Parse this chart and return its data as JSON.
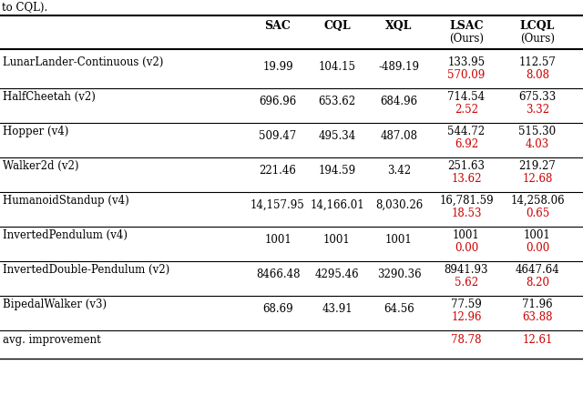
{
  "top_text": "to CQL).",
  "columns": [
    "SAC",
    "CQL",
    "XQL",
    "LSAC\n(Ours)",
    "LCQL\n(Ours)"
  ],
  "rows": [
    {
      "env": "LunarLander-Continuous (v2)",
      "vals": [
        "19.99",
        "104.15",
        "-489.19",
        "133.95",
        "112.57"
      ],
      "reds": [
        "",
        "",
        "",
        "570.09",
        "8.08"
      ]
    },
    {
      "env": "HalfCheetah (v2)",
      "vals": [
        "696.96",
        "653.62",
        "684.96",
        "714.54",
        "675.33"
      ],
      "reds": [
        "",
        "",
        "",
        "2.52",
        "3.32"
      ]
    },
    {
      "env": "Hopper (v4)",
      "vals": [
        "509.47",
        "495.34",
        "487.08",
        "544.72",
        "515.30"
      ],
      "reds": [
        "",
        "",
        "",
        "6.92",
        "4.03"
      ]
    },
    {
      "env": "Walker2d (v2)",
      "vals": [
        "221.46",
        "194.59",
        "3.42",
        "251.63",
        "219.27"
      ],
      "reds": [
        "",
        "",
        "",
        "13.62",
        "12.68"
      ]
    },
    {
      "env": "HumanoidStandup (v4)",
      "vals": [
        "14,157.95",
        "14,166.01",
        "8,030.26",
        "16,781.59",
        "14,258.06"
      ],
      "reds": [
        "",
        "",
        "",
        "18.53",
        "0.65"
      ]
    },
    {
      "env": "InvertedPendulum (v4)",
      "vals": [
        "1001",
        "1001",
        "1001",
        "1001",
        "1001"
      ],
      "reds": [
        "",
        "",
        "",
        "0.00",
        "0.00"
      ]
    },
    {
      "env": "InvertedDouble-Pendulum (v2)",
      "vals": [
        "8466.48",
        "4295.46",
        "3290.36",
        "8941.93",
        "4647.64"
      ],
      "reds": [
        "",
        "",
        "",
        "5.62",
        "8.20"
      ]
    },
    {
      "env": "BipedalWalker (v3)",
      "vals": [
        "68.69",
        "43.91",
        "64.56",
        "77.59",
        "71.96"
      ],
      "reds": [
        "",
        "",
        "",
        "12.96",
        "63.88"
      ]
    }
  ],
  "avg_lsac": "78.78",
  "avg_lcql": "12.61",
  "black": "#000000",
  "red": "#cc0000",
  "fig_w": 6.4,
  "fig_h": 4.35,
  "dpi": 100
}
